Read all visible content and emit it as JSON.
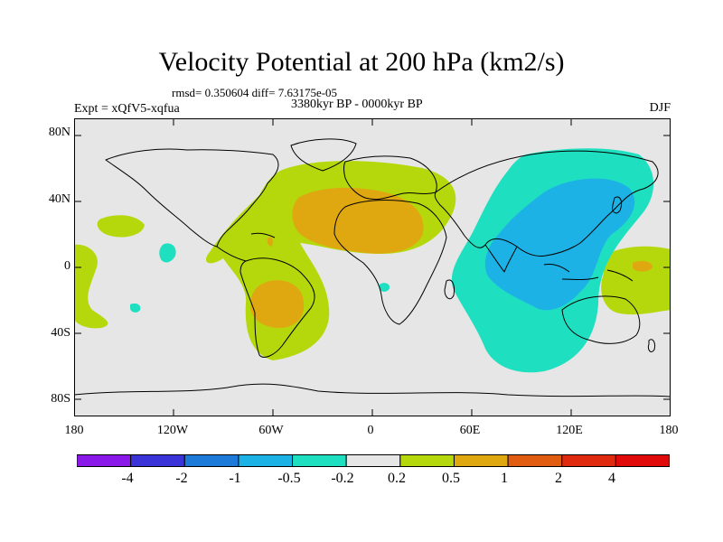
{
  "title": "Velocity Potential at 200 hPa (km2/s)",
  "rmsd_line": "rmsd= 0.350604 diff= 7.63175e-05",
  "period": "3380kyr BP - 0000kyr BP",
  "experiment": "Expt = xQfV5-xqfua",
  "season": "DJF",
  "y_ticks": [
    "80N",
    "40N",
    "0",
    "40S",
    "80S"
  ],
  "x_ticks": [
    "180",
    "120W",
    "60W",
    "0",
    "60E",
    "120E",
    "180"
  ],
  "colorbar": {
    "labels": [
      "-4",
      "-2",
      "-1",
      "-0.5",
      "-0.2",
      "0.2",
      "0.5",
      "1",
      "2",
      "4"
    ],
    "colors": [
      "#8a18e8",
      "#3a34d8",
      "#1e7ad8",
      "#1cb2e6",
      "#1ee0c0",
      "#e6e6e6",
      "#b4d80c",
      "#e0a810",
      "#e05c10",
      "#e02a10",
      "#e00a0a"
    ]
  },
  "colors": {
    "background": "#e6e6e6",
    "positive_weak": "#b4d80c",
    "positive_mid": "#e0a810",
    "negative_weak": "#1ee0c0",
    "negative_mid": "#1cb2e6"
  }
}
